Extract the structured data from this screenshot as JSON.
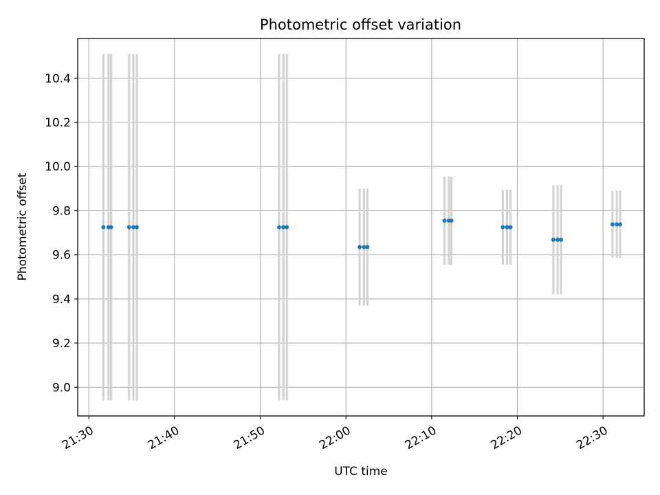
{
  "chart_data": {
    "type": "scatter",
    "title": "Photometric offset variation",
    "xlabel": "UTC time",
    "ylabel": "Photometric offset",
    "x_tick_labels": [
      "21:30",
      "21:40",
      "21:50",
      "22:00",
      "22:10",
      "22:20",
      "22:30"
    ],
    "x_tick_minutes": [
      0,
      10,
      20,
      30,
      40,
      50,
      60
    ],
    "xlim_minutes": [
      -1.3,
      64.8
    ],
    "y_ticks": [
      9.0,
      9.2,
      9.4,
      9.6,
      9.8,
      10.0,
      10.2,
      10.4
    ],
    "y_tick_labels": [
      "9.0",
      "9.2",
      "9.4",
      "9.6",
      "9.8",
      "10.0",
      "10.2",
      "10.4"
    ],
    "ylim": [
      8.87,
      10.58
    ],
    "grid": true,
    "colors": {
      "points": "#1f77b4",
      "errorbars": "#d3d3d3",
      "grid": "#b0b0b0"
    },
    "series": [
      {
        "points": [
          {
            "t": 1.7,
            "y": 9.725,
            "err": 0.785
          },
          {
            "t": 2.3,
            "y": 9.725,
            "err": 0.785
          },
          {
            "t": 2.6,
            "y": 9.725,
            "err": 0.785
          },
          {
            "t": 4.7,
            "y": 9.725,
            "err": 0.785
          },
          {
            "t": 5.2,
            "y": 9.725,
            "err": 0.785
          },
          {
            "t": 5.6,
            "y": 9.725,
            "err": 0.785
          },
          {
            "t": 22.2,
            "y": 9.725,
            "err": 0.785
          },
          {
            "t": 22.7,
            "y": 9.725,
            "err": 0.785
          },
          {
            "t": 23.1,
            "y": 9.725,
            "err": 0.785
          },
          {
            "t": 31.6,
            "y": 9.635,
            "err": 0.265
          },
          {
            "t": 32.1,
            "y": 9.635,
            "err": 0.265
          },
          {
            "t": 32.5,
            "y": 9.635,
            "err": 0.265
          },
          {
            "t": 41.5,
            "y": 9.755,
            "err": 0.2
          },
          {
            "t": 42.0,
            "y": 9.755,
            "err": 0.2
          },
          {
            "t": 42.3,
            "y": 9.755,
            "err": 0.2
          },
          {
            "t": 48.3,
            "y": 9.725,
            "err": 0.17
          },
          {
            "t": 48.8,
            "y": 9.725,
            "err": 0.17
          },
          {
            "t": 49.2,
            "y": 9.725,
            "err": 0.17
          },
          {
            "t": 54.2,
            "y": 9.668,
            "err": 0.248
          },
          {
            "t": 54.7,
            "y": 9.668,
            "err": 0.248
          },
          {
            "t": 55.1,
            "y": 9.668,
            "err": 0.248
          },
          {
            "t": 61.1,
            "y": 9.738,
            "err": 0.152
          },
          {
            "t": 61.6,
            "y": 9.738,
            "err": 0.152
          },
          {
            "t": 62.0,
            "y": 9.738,
            "err": 0.152
          }
        ]
      }
    ]
  }
}
